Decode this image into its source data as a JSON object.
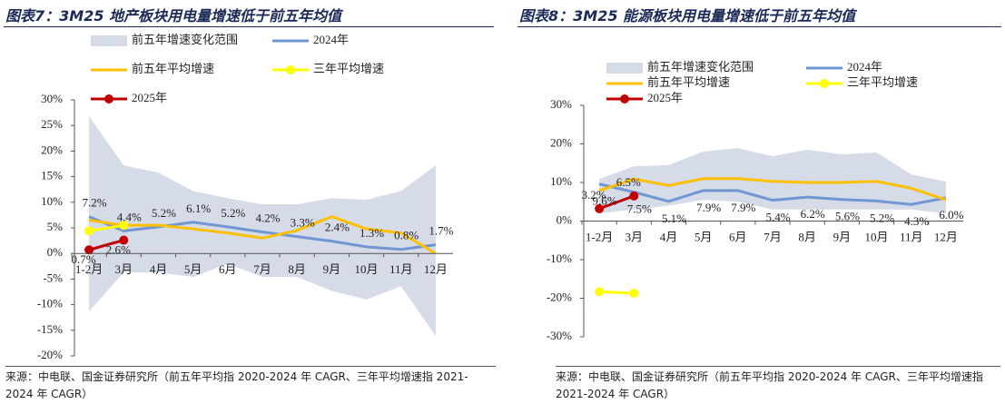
{
  "chart_data": [
    {
      "type": "line",
      "title": "图表7：3M25 地产板块用电量增速低于前五年均值",
      "source": "来源：中电联、国金证券研究所（前五年平均指 2020-2024 年 CAGR、三年平均增速指 2021-2024 年 CAGR）",
      "categories": [
        "1-2月",
        "3月",
        "4月",
        "5月",
        "6月",
        "7月",
        "8月",
        "9月",
        "10月",
        "11月",
        "12月"
      ],
      "ylim": [
        -20,
        30
      ],
      "yticks": [
        {
          "value": 30,
          "label": "30%"
        },
        {
          "value": 25,
          "label": "25%"
        },
        {
          "value": 20,
          "label": "20%"
        },
        {
          "value": 15,
          "label": "15%"
        },
        {
          "value": 10,
          "label": "10%"
        },
        {
          "value": 5,
          "label": "5%"
        },
        {
          "value": 0,
          "label": "0%"
        },
        {
          "value": -5,
          "label": "-5%"
        },
        {
          "value": -10,
          "label": "-10%"
        },
        {
          "value": -15,
          "label": "-15%"
        },
        {
          "value": -20,
          "label": "-20%"
        }
      ],
      "series": [
        {
          "name": "前五年增速变化范围",
          "type": "range",
          "color": "#d6dbe8",
          "upper": [
            26.8,
            17.2,
            15.8,
            12.2,
            10.8,
            9.6,
            9.6,
            10.8,
            10.5,
            12.2,
            17.2
          ],
          "lower": [
            -11.3,
            -3.7,
            -3.7,
            -4.6,
            -2.0,
            -4.6,
            -4.6,
            -7.3,
            -9.0,
            -6.4,
            -16.1
          ]
        },
        {
          "name": "2024年",
          "color": "#7097d2",
          "values": [
            7.2,
            4.4,
            5.2,
            6.1,
            5.2,
            4.2,
            3.3,
            2.4,
            1.3,
            0.8,
            1.7
          ],
          "value_labels": [
            "7.2%",
            "4.4%",
            "5.2%",
            "6.1%",
            "5.2%",
            "4.2%",
            "3.3%",
            "2.4%",
            "1.3%",
            "0.8%",
            "1.7%"
          ]
        },
        {
          "name": "前五年平均增速",
          "color": "#ffc000",
          "values": [
            6.5,
            5.5,
            5.5,
            4.8,
            4.0,
            3.0,
            4.5,
            7.2,
            4.8,
            4.0,
            0.0
          ]
        },
        {
          "name": "三年平均增速",
          "color": "#ffff00",
          "marker": "circle",
          "values": [
            4.4,
            5.5,
            null,
            null,
            null,
            null,
            null,
            null,
            null,
            null,
            null
          ]
        },
        {
          "name": "2025年",
          "color": "#c00000",
          "marker": "circle",
          "values": [
            0.7,
            2.6,
            null,
            null,
            null,
            null,
            null,
            null,
            null,
            null,
            null
          ],
          "value_labels": [
            "0.7%",
            "2.6%",
            null,
            null,
            null,
            null,
            null,
            null,
            null,
            null,
            null
          ]
        }
      ]
    },
    {
      "type": "line",
      "title": "图表8：3M25 能源板块用电量增速低于前五年均值",
      "source": "来源：中电联、国金证券研究所（前五年平均指 2020-2024 年 CAGR、三年平均增速指 2021-2024 年 CAGR）",
      "categories": [
        "1-2月",
        "3月",
        "4月",
        "5月",
        "6月",
        "7月",
        "8月",
        "9月",
        "10月",
        "11月",
        "12月"
      ],
      "ylim": [
        -30,
        30
      ],
      "yticks": [
        {
          "value": 30,
          "label": "30%"
        },
        {
          "value": 20,
          "label": "20%"
        },
        {
          "value": 10,
          "label": "10%"
        },
        {
          "value": 0,
          "label": "0%"
        },
        {
          "value": -10,
          "label": "-10%"
        },
        {
          "value": -20,
          "label": "-20%"
        },
        {
          "value": -30,
          "label": "-30%"
        }
      ],
      "series": [
        {
          "name": "前五年增速变化范围",
          "type": "range",
          "color": "#d6dbe8",
          "upper": [
            10.9,
            14.2,
            14.5,
            18.0,
            18.9,
            16.8,
            18.5,
            17.3,
            17.8,
            12.1,
            10.2
          ],
          "lower": [
            2.0,
            3.0,
            4.0,
            5.5,
            5.0,
            3.0,
            3.0,
            3.0,
            3.0,
            3.0,
            2.0
          ]
        },
        {
          "name": "2024年",
          "color": "#7097d2",
          "values": [
            9.6,
            7.5,
            5.1,
            7.9,
            7.9,
            5.4,
            6.2,
            5.6,
            5.2,
            4.3,
            6.0
          ],
          "value_labels": [
            "9.6%",
            "7.5%",
            "5.1%",
            "7.9%",
            "7.9%",
            "5.4%",
            "6.2%",
            "5.6%",
            "5.2%",
            "4.3%",
            "6.0%"
          ]
        },
        {
          "name": "前五年平均增速",
          "color": "#ffc000",
          "values": [
            7.9,
            10.9,
            9.2,
            11.0,
            11.0,
            10.3,
            10.0,
            10.0,
            10.3,
            8.5,
            5.5
          ]
        },
        {
          "name": "三年平均增速",
          "color": "#ffff00",
          "marker": "circle",
          "values": [
            -18.3,
            -18.7,
            null,
            null,
            null,
            null,
            null,
            null,
            null,
            null,
            null
          ]
        },
        {
          "name": "2025年",
          "color": "#c00000",
          "marker": "circle",
          "values": [
            3.2,
            6.5,
            null,
            null,
            null,
            null,
            null,
            null,
            null,
            null,
            null
          ],
          "value_labels": [
            "3.2%",
            "6.5%",
            null,
            null,
            null,
            null,
            null,
            null,
            null,
            null,
            null
          ]
        }
      ]
    }
  ]
}
